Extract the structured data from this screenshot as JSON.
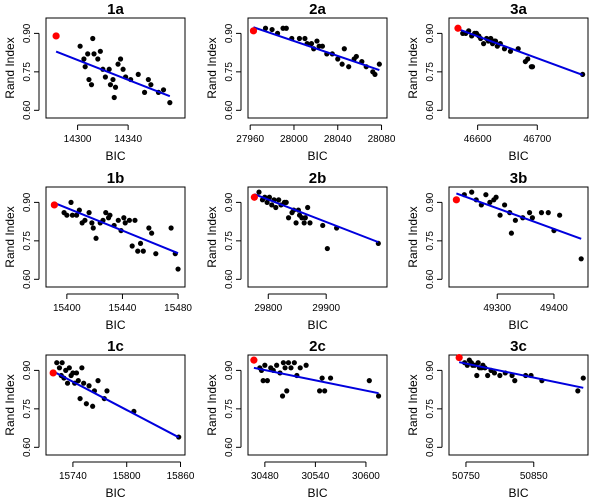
{
  "chart_data": [
    {
      "id": "1a",
      "type": "scatter",
      "title": "1a",
      "xlabel": "BIC",
      "ylabel": "Rand Index",
      "xlim": [
        14275,
        14385
      ],
      "ylim": [
        0.57,
        0.96
      ],
      "xticks": [
        14300,
        14340
      ],
      "yticks": [
        0.6,
        0.75,
        0.9
      ],
      "ytick_labels": [
        "0.60",
        "0.75",
        "0.90"
      ],
      "points": [
        [
          14302,
          0.85
        ],
        [
          14305,
          0.8
        ],
        [
          14306,
          0.77
        ],
        [
          14308,
          0.82
        ],
        [
          14309,
          0.72
        ],
        [
          14311,
          0.7
        ],
        [
          14312,
          0.88
        ],
        [
          14313,
          0.82
        ],
        [
          14316,
          0.8
        ],
        [
          14318,
          0.83
        ],
        [
          14320,
          0.76
        ],
        [
          14322,
          0.73
        ],
        [
          14325,
          0.76
        ],
        [
          14326,
          0.7
        ],
        [
          14328,
          0.72
        ],
        [
          14329,
          0.65
        ],
        [
          14330,
          0.69
        ],
        [
          14332,
          0.78
        ],
        [
          14334,
          0.8
        ],
        [
          14336,
          0.76
        ],
        [
          14338,
          0.73
        ],
        [
          14342,
          0.72
        ],
        [
          14348,
          0.74
        ],
        [
          14353,
          0.67
        ],
        [
          14356,
          0.72
        ],
        [
          14358,
          0.7
        ],
        [
          14364,
          0.67
        ],
        [
          14368,
          0.68
        ],
        [
          14373,
          0.63
        ]
      ],
      "highlight": [
        14283,
        0.89
      ],
      "fit": [
        [
          14283,
          0.829
        ],
        [
          14373,
          0.655
        ]
      ]
    },
    {
      "id": "2a",
      "type": "scatter",
      "title": "2a",
      "xlabel": "BIC",
      "ylabel": "Rand Index",
      "xlim": [
        27958,
        28085
      ],
      "ylim": [
        0.57,
        0.96
      ],
      "xticks": [
        27960,
        28000,
        28040,
        28080
      ],
      "yticks": [
        0.6,
        0.75,
        0.9
      ],
      "ytick_labels": [
        "0.60",
        "0.75",
        "0.90"
      ],
      "points": [
        [
          27974,
          0.92
        ],
        [
          27980,
          0.915
        ],
        [
          27985,
          0.9
        ],
        [
          27990,
          0.92
        ],
        [
          27993,
          0.92
        ],
        [
          27998,
          0.88
        ],
        [
          28005,
          0.88
        ],
        [
          28010,
          0.88
        ],
        [
          28012,
          0.86
        ],
        [
          28016,
          0.86
        ],
        [
          28018,
          0.84
        ],
        [
          28021,
          0.87
        ],
        [
          28023,
          0.85
        ],
        [
          28026,
          0.85
        ],
        [
          28030,
          0.82
        ],
        [
          28035,
          0.82
        ],
        [
          28040,
          0.8
        ],
        [
          28044,
          0.78
        ],
        [
          28046,
          0.84
        ],
        [
          28050,
          0.77
        ],
        [
          28055,
          0.8
        ],
        [
          28057,
          0.81
        ],
        [
          28062,
          0.79
        ],
        [
          28066,
          0.77
        ],
        [
          28072,
          0.75
        ],
        [
          28074,
          0.74
        ],
        [
          28078,
          0.78
        ]
      ],
      "highlight": [
        27963,
        0.91
      ],
      "fit": [
        [
          27963,
          0.924
        ],
        [
          28078,
          0.757
        ]
      ]
    },
    {
      "id": "3a",
      "type": "scatter",
      "title": "3a",
      "xlabel": "BIC",
      "ylabel": "Rand Index",
      "xlim": [
        46552,
        46785
      ],
      "ylim": [
        0.57,
        0.96
      ],
      "xticks": [
        46600,
        46700
      ],
      "yticks": [
        0.6,
        0.75,
        0.9
      ],
      "ytick_labels": [
        "0.60",
        "0.75",
        "0.90"
      ],
      "points": [
        [
          46575,
          0.9
        ],
        [
          46580,
          0.9
        ],
        [
          46585,
          0.91
        ],
        [
          46590,
          0.89
        ],
        [
          46595,
          0.9
        ],
        [
          46598,
          0.9
        ],
        [
          46602,
          0.89
        ],
        [
          46605,
          0.88
        ],
        [
          46610,
          0.86
        ],
        [
          46615,
          0.88
        ],
        [
          46618,
          0.87
        ],
        [
          46622,
          0.88
        ],
        [
          46625,
          0.86
        ],
        [
          46628,
          0.87
        ],
        [
          46630,
          0.87
        ],
        [
          46633,
          0.85
        ],
        [
          46638,
          0.86
        ],
        [
          46645,
          0.84
        ],
        [
          46655,
          0.83
        ],
        [
          46668,
          0.84
        ],
        [
          46680,
          0.79
        ],
        [
          46684,
          0.8
        ],
        [
          46690,
          0.77
        ],
        [
          46692,
          0.77
        ],
        [
          46776,
          0.74
        ]
      ],
      "highlight": [
        46567,
        0.92
      ],
      "fit": [
        [
          46567,
          0.917
        ],
        [
          46776,
          0.738
        ]
      ]
    },
    {
      "id": "1b",
      "type": "scatter",
      "title": "1b",
      "xlabel": "BIC",
      "ylabel": "Rand Index",
      "xlim": [
        15385,
        15485
      ],
      "ylim": [
        0.57,
        0.96
      ],
      "xticks": [
        15400,
        15440,
        15480
      ],
      "yticks": [
        0.6,
        0.75,
        0.9
      ],
      "ytick_labels": [
        "0.60",
        "0.75",
        "0.90"
      ],
      "points": [
        [
          15398,
          0.86
        ],
        [
          15400,
          0.85
        ],
        [
          15403,
          0.9
        ],
        [
          15404,
          0.85
        ],
        [
          15407,
          0.85
        ],
        [
          15409,
          0.87
        ],
        [
          15411,
          0.82
        ],
        [
          15413,
          0.83
        ],
        [
          15416,
          0.86
        ],
        [
          15418,
          0.82
        ],
        [
          15419,
          0.8
        ],
        [
          15421,
          0.76
        ],
        [
          15424,
          0.82
        ],
        [
          15426,
          0.83
        ],
        [
          15428,
          0.86
        ],
        [
          15430,
          0.84
        ],
        [
          15431,
          0.85
        ],
        [
          15434,
          0.81
        ],
        [
          15437,
          0.83
        ],
        [
          15439,
          0.79
        ],
        [
          15441,
          0.84
        ],
        [
          15442,
          0.82
        ],
        [
          15445,
          0.83
        ],
        [
          15447,
          0.73
        ],
        [
          15449,
          0.83
        ],
        [
          15451,
          0.71
        ],
        [
          15453,
          0.74
        ],
        [
          15455,
          0.71
        ],
        [
          15459,
          0.8
        ],
        [
          15461,
          0.78
        ],
        [
          15464,
          0.7
        ],
        [
          15475,
          0.8
        ],
        [
          15478,
          0.7
        ],
        [
          15480,
          0.64
        ]
      ],
      "highlight": [
        15391,
        0.89
      ],
      "fit": [
        [
          15391,
          0.898
        ],
        [
          15480,
          0.702
        ]
      ]
    },
    {
      "id": "2b",
      "type": "scatter",
      "title": "2b",
      "xlabel": "BIC",
      "ylabel": "Rand Index",
      "xlim": [
        29765,
        30005
      ],
      "ylim": [
        0.57,
        0.96
      ],
      "xticks": [
        29800,
        29900
      ],
      "yticks": [
        0.6,
        0.75,
        0.9
      ],
      "ytick_labels": [
        "0.60",
        "0.75",
        "0.90"
      ],
      "points": [
        [
          29784,
          0.94
        ],
        [
          29790,
          0.91
        ],
        [
          29794,
          0.92
        ],
        [
          29798,
          0.9
        ],
        [
          29802,
          0.92
        ],
        [
          29806,
          0.89
        ],
        [
          29810,
          0.91
        ],
        [
          29813,
          0.88
        ],
        [
          29818,
          0.91
        ],
        [
          29822,
          0.89
        ],
        [
          29828,
          0.9
        ],
        [
          29831,
          0.9
        ],
        [
          29835,
          0.84
        ],
        [
          29841,
          0.86
        ],
        [
          29844,
          0.87
        ],
        [
          29848,
          0.82
        ],
        [
          29852,
          0.87
        ],
        [
          29854,
          0.85
        ],
        [
          29858,
          0.84
        ],
        [
          29862,
          0.82
        ],
        [
          29864,
          0.84
        ],
        [
          29868,
          0.88
        ],
        [
          29872,
          0.82
        ],
        [
          29894,
          0.81
        ],
        [
          29902,
          0.72
        ],
        [
          29918,
          0.8
        ],
        [
          29990,
          0.74
        ]
      ],
      "highlight": [
        29776,
        0.92
      ],
      "fit": [
        [
          29776,
          0.932
        ],
        [
          29990,
          0.745
        ]
      ]
    },
    {
      "id": "3b",
      "type": "scatter",
      "title": "3b",
      "xlabel": "BIC",
      "ylabel": "Rand Index",
      "xlim": [
        49215,
        49460
      ],
      "ylim": [
        0.57,
        0.96
      ],
      "xticks": [
        49300,
        49400
      ],
      "yticks": [
        0.6,
        0.75,
        0.9
      ],
      "ytick_labels": [
        "0.60",
        "0.75",
        "0.90"
      ],
      "points": [
        [
          49242,
          0.93
        ],
        [
          49255,
          0.94
        ],
        [
          49263,
          0.91
        ],
        [
          49272,
          0.89
        ],
        [
          49280,
          0.93
        ],
        [
          49287,
          0.9
        ],
        [
          49294,
          0.91
        ],
        [
          49298,
          0.92
        ],
        [
          49305,
          0.85
        ],
        [
          49313,
          0.89
        ],
        [
          49322,
          0.86
        ],
        [
          49325,
          0.78
        ],
        [
          49332,
          0.83
        ],
        [
          49345,
          0.84
        ],
        [
          49357,
          0.86
        ],
        [
          49362,
          0.84
        ],
        [
          49378,
          0.86
        ],
        [
          49390,
          0.86
        ],
        [
          49400,
          0.79
        ],
        [
          49410,
          0.85
        ],
        [
          49448,
          0.68
        ]
      ],
      "highlight": [
        49228,
        0.91
      ],
      "fit": [
        [
          49228,
          0.935
        ],
        [
          49448,
          0.758
        ]
      ]
    },
    {
      "id": "1c",
      "type": "scatter",
      "title": "1c",
      "xlabel": "BIC",
      "ylabel": "Rand Index",
      "xlim": [
        15710,
        15865
      ],
      "ylim": [
        0.57,
        0.96
      ],
      "xticks": [
        15740,
        15800,
        15860
      ],
      "yticks": [
        0.6,
        0.75,
        0.9
      ],
      "ytick_labels": [
        "0.60",
        "0.75",
        "0.90"
      ],
      "points": [
        [
          15722,
          0.93
        ],
        [
          15725,
          0.91
        ],
        [
          15727,
          0.88
        ],
        [
          15728,
          0.93
        ],
        [
          15730,
          0.87
        ],
        [
          15732,
          0.9
        ],
        [
          15734,
          0.85
        ],
        [
          15736,
          0.91
        ],
        [
          15738,
          0.88
        ],
        [
          15740,
          0.89
        ],
        [
          15742,
          0.85
        ],
        [
          15744,
          0.89
        ],
        [
          15746,
          0.86
        ],
        [
          15748,
          0.79
        ],
        [
          15750,
          0.91
        ],
        [
          15752,
          0.85
        ],
        [
          15755,
          0.77
        ],
        [
          15758,
          0.84
        ],
        [
          15762,
          0.76
        ],
        [
          15764,
          0.82
        ],
        [
          15768,
          0.86
        ],
        [
          15775,
          0.79
        ],
        [
          15778,
          0.82
        ],
        [
          15808,
          0.74
        ],
        [
          15858,
          0.64
        ]
      ],
      "highlight": [
        15718,
        0.89
      ],
      "fit": [
        [
          15718,
          0.896
        ],
        [
          15858,
          0.639
        ]
      ]
    },
    {
      "id": "2c",
      "type": "scatter",
      "title": "2c",
      "xlabel": "BIC",
      "ylabel": "Rand Index",
      "xlim": [
        30460,
        30625
      ],
      "ylim": [
        0.57,
        0.96
      ],
      "xticks": [
        30480,
        30540,
        30600
      ],
      "yticks": [
        0.6,
        0.75,
        0.9
      ],
      "ytick_labels": [
        "0.60",
        "0.75",
        "0.90"
      ],
      "points": [
        [
          30474,
          0.91
        ],
        [
          30476,
          0.9
        ],
        [
          30478,
          0.86
        ],
        [
          30480,
          0.92
        ],
        [
          30483,
          0.86
        ],
        [
          30487,
          0.91
        ],
        [
          30490,
          0.9
        ],
        [
          30494,
          0.92
        ],
        [
          30498,
          0.89
        ],
        [
          30501,
          0.8
        ],
        [
          30502,
          0.93
        ],
        [
          30504,
          0.91
        ],
        [
          30506,
          0.82
        ],
        [
          30508,
          0.93
        ],
        [
          30511,
          0.91
        ],
        [
          30515,
          0.93
        ],
        [
          30518,
          0.88
        ],
        [
          30522,
          0.91
        ],
        [
          30529,
          0.92
        ],
        [
          30545,
          0.82
        ],
        [
          30548,
          0.87
        ],
        [
          30551,
          0.82
        ],
        [
          30558,
          0.87
        ],
        [
          30604,
          0.86
        ],
        [
          30615,
          0.8
        ]
      ],
      "highlight": [
        30467,
        0.94
      ],
      "fit": [
        [
          30467,
          0.91
        ],
        [
          30615,
          0.811
        ]
      ]
    },
    {
      "id": "3c",
      "type": "scatter",
      "title": "3c",
      "xlabel": "BIC",
      "ylabel": "Rand Index",
      "xlim": [
        50725,
        50930
      ],
      "ylim": [
        0.57,
        0.96
      ],
      "xticks": [
        50750,
        50850
      ],
      "yticks": [
        0.6,
        0.75,
        0.9
      ],
      "ytick_labels": [
        "0.60",
        "0.75",
        "0.90"
      ],
      "points": [
        [
          50748,
          0.93
        ],
        [
          50752,
          0.92
        ],
        [
          50755,
          0.94
        ],
        [
          50758,
          0.93
        ],
        [
          50760,
          0.92
        ],
        [
          50763,
          0.92
        ],
        [
          50766,
          0.88
        ],
        [
          50768,
          0.93
        ],
        [
          50770,
          0.91
        ],
        [
          50773,
          0.91
        ],
        [
          50775,
          0.92
        ],
        [
          50778,
          0.91
        ],
        [
          50782,
          0.88
        ],
        [
          50787,
          0.9
        ],
        [
          50792,
          0.89
        ],
        [
          50800,
          0.88
        ],
        [
          50808,
          0.89
        ],
        [
          50818,
          0.88
        ],
        [
          50822,
          0.86
        ],
        [
          50838,
          0.88
        ],
        [
          50846,
          0.88
        ],
        [
          50862,
          0.86
        ],
        [
          50915,
          0.82
        ],
        [
          50923,
          0.87
        ]
      ],
      "highlight": [
        50740,
        0.95
      ],
      "fit": [
        [
          50740,
          0.932
        ],
        [
          50923,
          0.832
        ]
      ]
    }
  ]
}
